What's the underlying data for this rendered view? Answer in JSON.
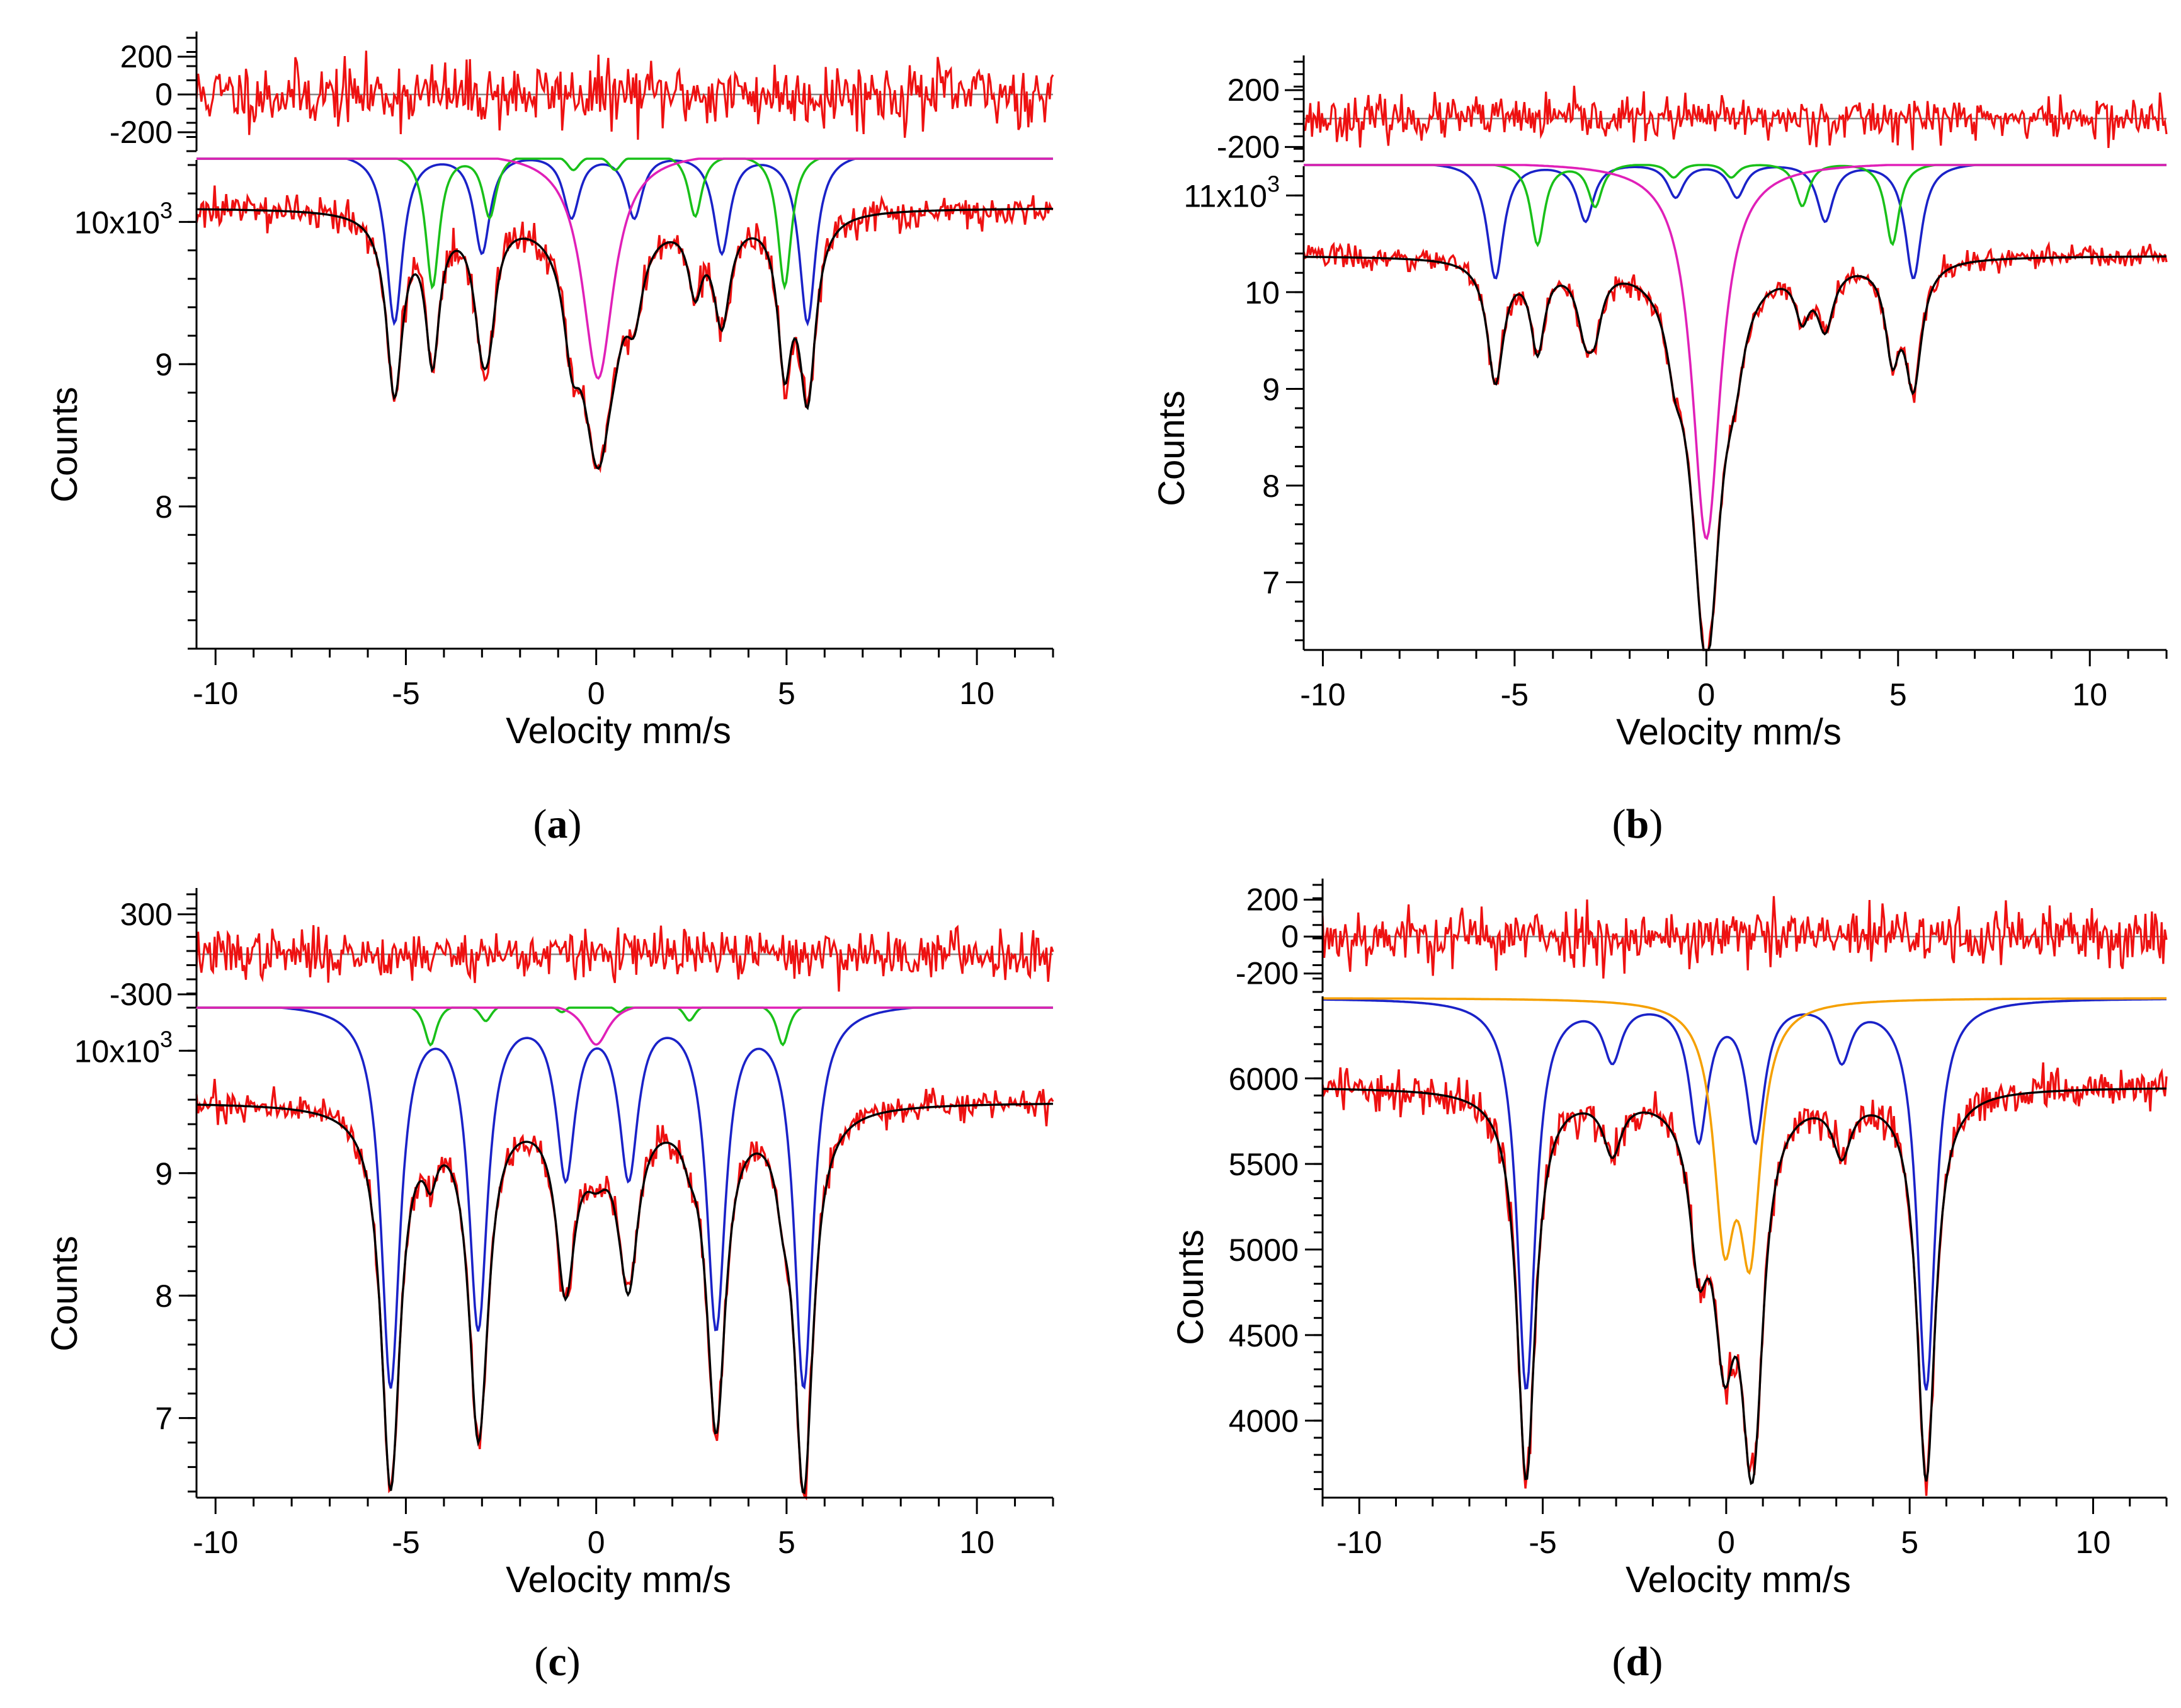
{
  "colors": {
    "data": "#ee1111",
    "fit": "#000000",
    "sextet_blue": "#1a22c8",
    "sextet_green": "#19c019",
    "singlet_magenta": "#e020b8",
    "doublet_orange": "#f5a000",
    "zero_line": "#888888"
  },
  "chart_data": [
    {
      "id": "a",
      "panel_label": "a",
      "type": "line",
      "xlabel": "Velocity mm/s",
      "ylabel": "Counts",
      "xlim": [
        -10.5,
        12
      ],
      "x_ticks": [
        "-10",
        "-5",
        "0",
        "5",
        "10"
      ],
      "ylim": [
        7.0,
        10.4
      ],
      "y_ticks": [
        {
          "value": 8,
          "label": "8"
        },
        {
          "value": 9,
          "label": "9"
        },
        {
          "value": 10,
          "label": "10x10",
          "exp": "3"
        }
      ],
      "baseline": 10.1,
      "noise": 0.06,
      "residual": {
        "ylim": [
          -300,
          300
        ],
        "ticks": [
          "200",
          "0",
          "-200"
        ],
        "tick_values": [
          200,
          0,
          -200
        ],
        "noise": 85
      },
      "components": [
        {
          "name": "sextet-blue",
          "color": "sextet_blue",
          "top": 10.5,
          "lines": [
            {
              "v": -5.3,
              "d": 1.2,
              "w": 0.26
            },
            {
              "v": -3.0,
              "d": 0.7,
              "w": 0.26
            },
            {
              "v": -0.65,
              "d": 0.45,
              "w": 0.26
            },
            {
              "v": 1.0,
              "d": 0.45,
              "w": 0.26
            },
            {
              "v": 3.3,
              "d": 0.7,
              "w": 0.26
            },
            {
              "v": 5.55,
              "d": 1.2,
              "w": 0.26
            }
          ]
        },
        {
          "name": "sextet-green",
          "color": "sextet_green",
          "top": 10.5,
          "lines": [
            {
              "v": -4.3,
              "d": 0.95,
              "w": 0.22
            },
            {
              "v": -2.8,
              "d": 0.45,
              "w": 0.22
            },
            {
              "v": -0.6,
              "d": 0.12,
              "w": 0.22
            },
            {
              "v": 0.5,
              "d": 0.12,
              "w": 0.22
            },
            {
              "v": 2.6,
              "d": 0.45,
              "w": 0.22
            },
            {
              "v": 4.95,
              "d": 0.95,
              "w": 0.22
            }
          ]
        },
        {
          "name": "singlet-magenta",
          "color": "singlet_magenta",
          "top": 10.5,
          "lines": [
            {
              "v": 0.05,
              "d": 1.6,
              "w": 0.5
            }
          ]
        }
      ],
      "fit": {
        "base": 10.1,
        "depth_scale": 1.05
      }
    },
    {
      "id": "b",
      "panel_label": "b",
      "type": "line",
      "xlabel": "Velocity mm/s",
      "ylabel": "Counts",
      "xlim": [
        -10.5,
        12
      ],
      "x_ticks": [
        "-10",
        "-5",
        "0",
        "5",
        "10"
      ],
      "ylim": [
        6.3,
        11.25
      ],
      "y_ticks": [
        {
          "value": 7,
          "label": "7"
        },
        {
          "value": 8,
          "label": "8"
        },
        {
          "value": 9,
          "label": "9"
        },
        {
          "value": 10,
          "label": "10"
        },
        {
          "value": 11,
          "label": "11x10",
          "exp": "3"
        }
      ],
      "baseline": 10.38,
      "noise": 0.06,
      "residual": {
        "ylim": [
          -300,
          400
        ],
        "ticks": [
          "200",
          "-200"
        ],
        "tick_values": [
          200,
          -200
        ],
        "noise": 75
      },
      "components": [
        {
          "name": "sextet-blue",
          "color": "sextet_blue",
          "top": 11.35,
          "lines": [
            {
              "v": -5.5,
              "d": 1.2,
              "w": 0.26
            },
            {
              "v": -3.15,
              "d": 0.6,
              "w": 0.26
            },
            {
              "v": -0.8,
              "d": 0.35,
              "w": 0.26
            },
            {
              "v": 0.8,
              "d": 0.35,
              "w": 0.26
            },
            {
              "v": 3.1,
              "d": 0.6,
              "w": 0.26
            },
            {
              "v": 5.4,
              "d": 1.2,
              "w": 0.26
            }
          ]
        },
        {
          "name": "sextet-green",
          "color": "sextet_green",
          "top": 11.35,
          "lines": [
            {
              "v": -4.4,
              "d": 0.85,
              "w": 0.22
            },
            {
              "v": -2.9,
              "d": 0.45,
              "w": 0.22
            },
            {
              "v": -0.85,
              "d": 0.15,
              "w": 0.22
            },
            {
              "v": 0.65,
              "d": 0.15,
              "w": 0.22
            },
            {
              "v": 2.5,
              "d": 0.45,
              "w": 0.22
            },
            {
              "v": 4.85,
              "d": 0.85,
              "w": 0.22
            }
          ]
        },
        {
          "name": "singlet-magenta",
          "color": "singlet_magenta",
          "top": 11.35,
          "lines": [
            {
              "v": 0.0,
              "d": 3.9,
              "w": 0.45
            }
          ]
        }
      ],
      "fit": {
        "base": 10.38,
        "depth_scale": 1.05
      }
    },
    {
      "id": "c",
      "panel_label": "c",
      "type": "line",
      "xlabel": "Velocity mm/s",
      "ylabel": "Counts",
      "xlim": [
        -10.5,
        12
      ],
      "x_ticks": [
        "-10",
        "-5",
        "0",
        "5",
        "10"
      ],
      "ylim": [
        6.35,
        10.3
      ],
      "y_ticks": [
        {
          "value": 7,
          "label": "7"
        },
        {
          "value": 8,
          "label": "8"
        },
        {
          "value": 9,
          "label": "9"
        },
        {
          "value": 10,
          "label": "10x10",
          "exp": "3"
        }
      ],
      "baseline": 9.58,
      "noise": 0.06,
      "residual": {
        "ylim": [
          -400,
          450
        ],
        "ticks": [
          "300",
          "-300"
        ],
        "tick_values": [
          300,
          -300
        ],
        "noise": 90
      },
      "components": [
        {
          "name": "sextet-blue",
          "color": "sextet_blue",
          "top": 10.4,
          "lines": [
            {
              "v": -5.4,
              "d": 3.1,
              "w": 0.3
            },
            {
              "v": -3.1,
              "d": 2.6,
              "w": 0.3
            },
            {
              "v": -0.8,
              "d": 1.35,
              "w": 0.3
            },
            {
              "v": 0.85,
              "d": 1.35,
              "w": 0.3
            },
            {
              "v": 3.15,
              "d": 2.6,
              "w": 0.3
            },
            {
              "v": 5.45,
              "d": 3.1,
              "w": 0.3
            }
          ]
        },
        {
          "name": "sextet-green",
          "color": "sextet_green",
          "top": 10.4,
          "lines": [
            {
              "v": -4.35,
              "d": 0.35,
              "w": 0.2
            },
            {
              "v": -2.9,
              "d": 0.15,
              "w": 0.2
            },
            {
              "v": -0.9,
              "d": 0.08,
              "w": 0.2
            },
            {
              "v": 0.6,
              "d": 0.08,
              "w": 0.2
            },
            {
              "v": 2.45,
              "d": 0.15,
              "w": 0.2
            },
            {
              "v": 4.9,
              "d": 0.35,
              "w": 0.2
            }
          ]
        },
        {
          "name": "singlet-magenta",
          "color": "singlet_magenta",
          "top": 10.4,
          "lines": [
            {
              "v": 0.0,
              "d": 0.35,
              "w": 0.4
            }
          ]
        }
      ],
      "fit": {
        "base": 9.58,
        "depth_scale": 1.0
      }
    },
    {
      "id": "d",
      "panel_label": "d",
      "type": "line",
      "xlabel": "Velocity mm/s",
      "ylabel": "Counts",
      "xlim": [
        -11,
        12
      ],
      "x_ticks": [
        "-10",
        "-5",
        "0",
        "5",
        "10"
      ],
      "ylim": [
        3550,
        6450
      ],
      "y_ticks": [
        {
          "value": 4000,
          "label": "4000"
        },
        {
          "value": 4500,
          "label": "4500"
        },
        {
          "value": 5000,
          "label": "5000"
        },
        {
          "value": 5500,
          "label": "5500"
        },
        {
          "value": 6000,
          "label": "6000"
        }
      ],
      "baseline": 5950,
      "noise": 60,
      "residual": {
        "ylim": [
          -300,
          280
        ],
        "ticks": [
          "200",
          "0",
          "-200"
        ],
        "tick_values": [
          200,
          0,
          -200
        ],
        "noise": 80
      },
      "components": [
        {
          "name": "sextet-blue",
          "color": "sextet_blue",
          "top": 6470,
          "lines": [
            {
              "v": -5.45,
              "d": 2280,
              "w": 0.3
            },
            {
              "v": -3.1,
              "d": 330,
              "w": 0.3
            },
            {
              "v": -0.75,
              "d": 800,
              "w": 0.3
            },
            {
              "v": 0.8,
              "d": 800,
              "w": 0.3
            },
            {
              "v": 3.15,
              "d": 330,
              "w": 0.3
            },
            {
              "v": 5.45,
              "d": 2280,
              "w": 0.3
            }
          ]
        },
        {
          "name": "doublet-orange",
          "color": "doublet_orange",
          "top": 6470,
          "lines": [
            {
              "v": -0.05,
              "d": 1250,
              "w": 0.35
            },
            {
              "v": 0.65,
              "d": 1350,
              "w": 0.35
            }
          ]
        }
      ],
      "fit": {
        "base": 5950,
        "depth_scale": 1.0
      }
    }
  ]
}
